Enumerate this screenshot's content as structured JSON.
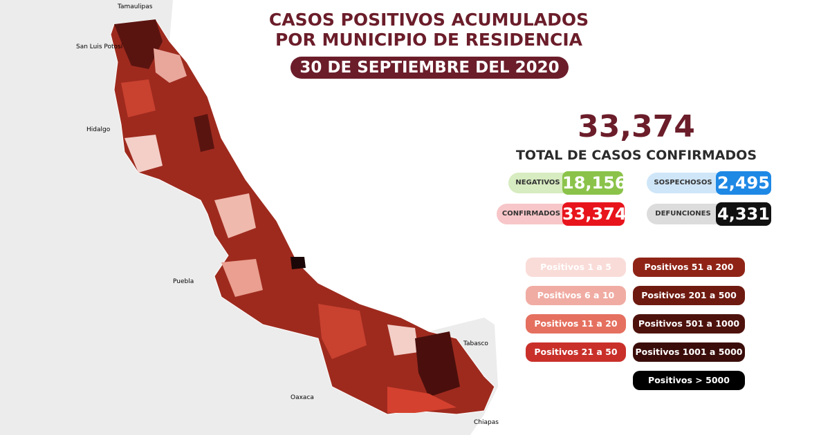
{
  "header": {
    "title_line1": "CASOS POSITIVOS ACUMULADOS",
    "title_line2": "POR MUNICIPIO DE RESIDENCIA",
    "date": "30 DE SEPTIEMBRE DEL 2020"
  },
  "summary": {
    "total": "33,374",
    "total_label": "TOTAL DE CASOS CONFIRMADOS",
    "stats": [
      {
        "label": "NEGATIVOS",
        "value": "18,156"
      },
      {
        "label": "SOSPECHOSOS",
        "value": "2,495"
      },
      {
        "label": "CONFIRMADOS",
        "value": "33,374"
      },
      {
        "label": "DEFUNCIONES",
        "value": "4,331"
      }
    ]
  },
  "legend": [
    "Positivos 1 a 5",
    "Positivos 6 a 10",
    "Positivos 11 a 20",
    "Positivos 21 a 50",
    "Positivos 51 a 200",
    "Positivos 201 a 500",
    "Positivos 501 a 1000",
    "Positivos 1001 a 5000",
    "Positivos > 5000"
  ],
  "map": {
    "states": [
      "Tamaulipas",
      "San Luis Potosí",
      "Hidalgo",
      "Puebla",
      "Oaxaca",
      "Tabasco",
      "Chiapas"
    ]
  }
}
